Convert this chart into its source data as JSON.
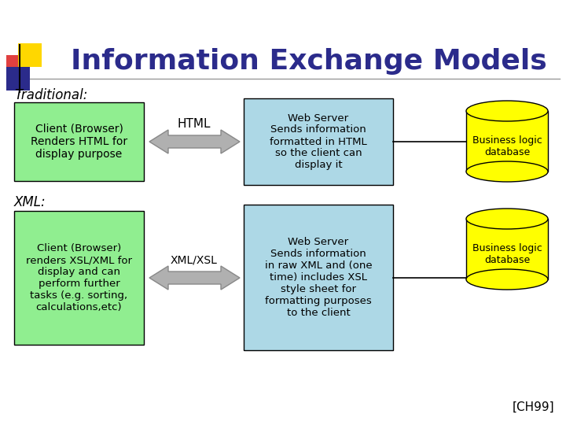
{
  "title": "Information Exchange Models",
  "title_color": "#2B2B8B",
  "title_fontsize": 26,
  "bg_color": "#FFFFFF",
  "traditional_label": "Traditional:",
  "xml_label": "XML:",
  "client_box1_text": "Client (Browser)\nRenders HTML for\ndisplay purpose",
  "client_box2_text": "Client (Browser)\nrenders XSL/XML for\ndisplay and can\nperform further\ntasks (e.g. sorting,\ncalculations,etc)",
  "arrow1_label": "HTML",
  "arrow2_label": "XML/XSL",
  "server_box1_text": "Web Server\nSends information\nformatted in HTML\nso the client can\ndisplay it",
  "server_box2_text": "Web Server\nSends information\nin raw XML and (one\ntime) includes XSL\nstyle sheet for\nformatting purposes\nto the client",
  "db_label": "Business logic\ndatabase",
  "green_box_color": "#90EE90",
  "blue_box_color": "#ADD8E6",
  "yellow_cyl_color": "#FFFF00",
  "arrow_color": "#B0B0B0",
  "text_color": "#000000",
  "footnote": "[CH99]",
  "red_sq": "#E04040",
  "yellow_sq": "#FFD700",
  "blue_sq": "#2B2B8B",
  "line_color": "#999999"
}
